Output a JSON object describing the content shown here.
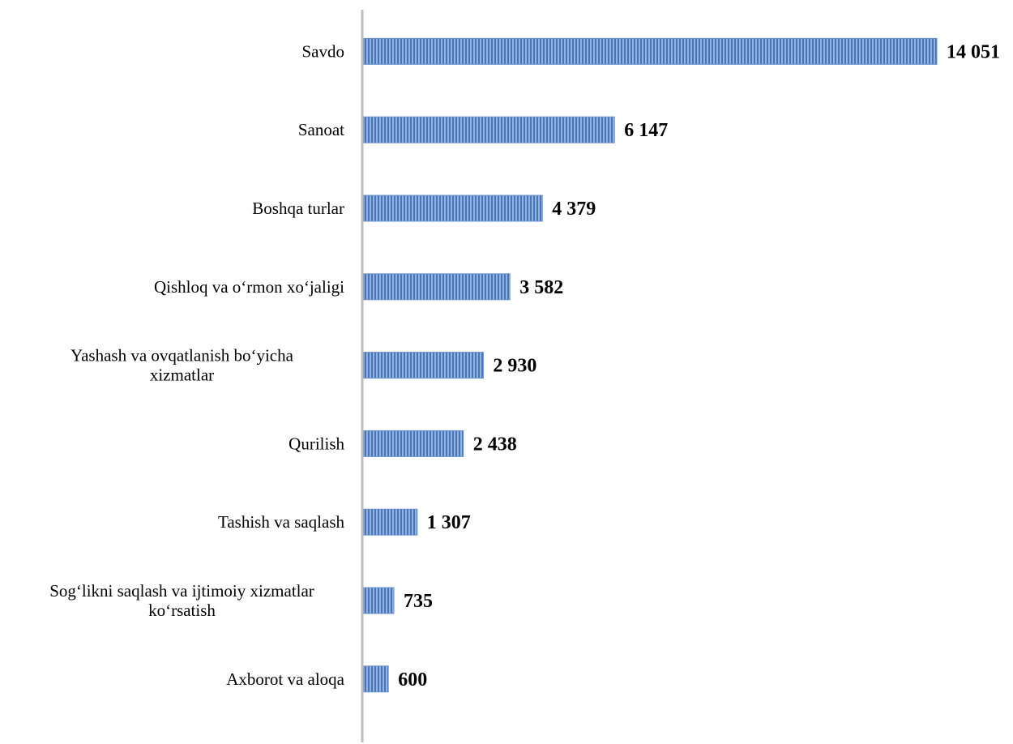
{
  "chart_data": {
    "type": "bar",
    "orientation": "horizontal",
    "categories": [
      [
        "Savdo"
      ],
      [
        "Sanoat"
      ],
      [
        "Boshqa turlar"
      ],
      [
        "Qishloq va o‘rmon xo‘jaligi"
      ],
      [
        "Yashash va ovqatlanish bo‘yicha",
        "xizmatlar"
      ],
      [
        "Qurilish"
      ],
      [
        "Tashish va saqlash"
      ],
      [
        "Sog‘likni saqlash va ijtimoiy xizmatlar",
        "ko‘rsatish"
      ],
      [
        "Axborot va aloqa"
      ]
    ],
    "values": [
      14051,
      6147,
      4379,
      3582,
      2930,
      2438,
      1307,
      735,
      600
    ],
    "value_labels": [
      "14 051",
      "6 147",
      "4 379",
      "3 582",
      "2 930",
      "2 438",
      "1 307",
      "735",
      "600"
    ],
    "xlim": [
      0,
      14051
    ],
    "title": "",
    "xlabel": "",
    "ylabel": "",
    "grid": false,
    "legend": "none",
    "bar_pattern": "vertical-stripes",
    "colors": {
      "bar_light": "#8fb4e3",
      "bar_dark": "#4a76b7",
      "bar_border": "#6b92cc",
      "axis": "#bfbfbf",
      "text": "#000000"
    }
  }
}
